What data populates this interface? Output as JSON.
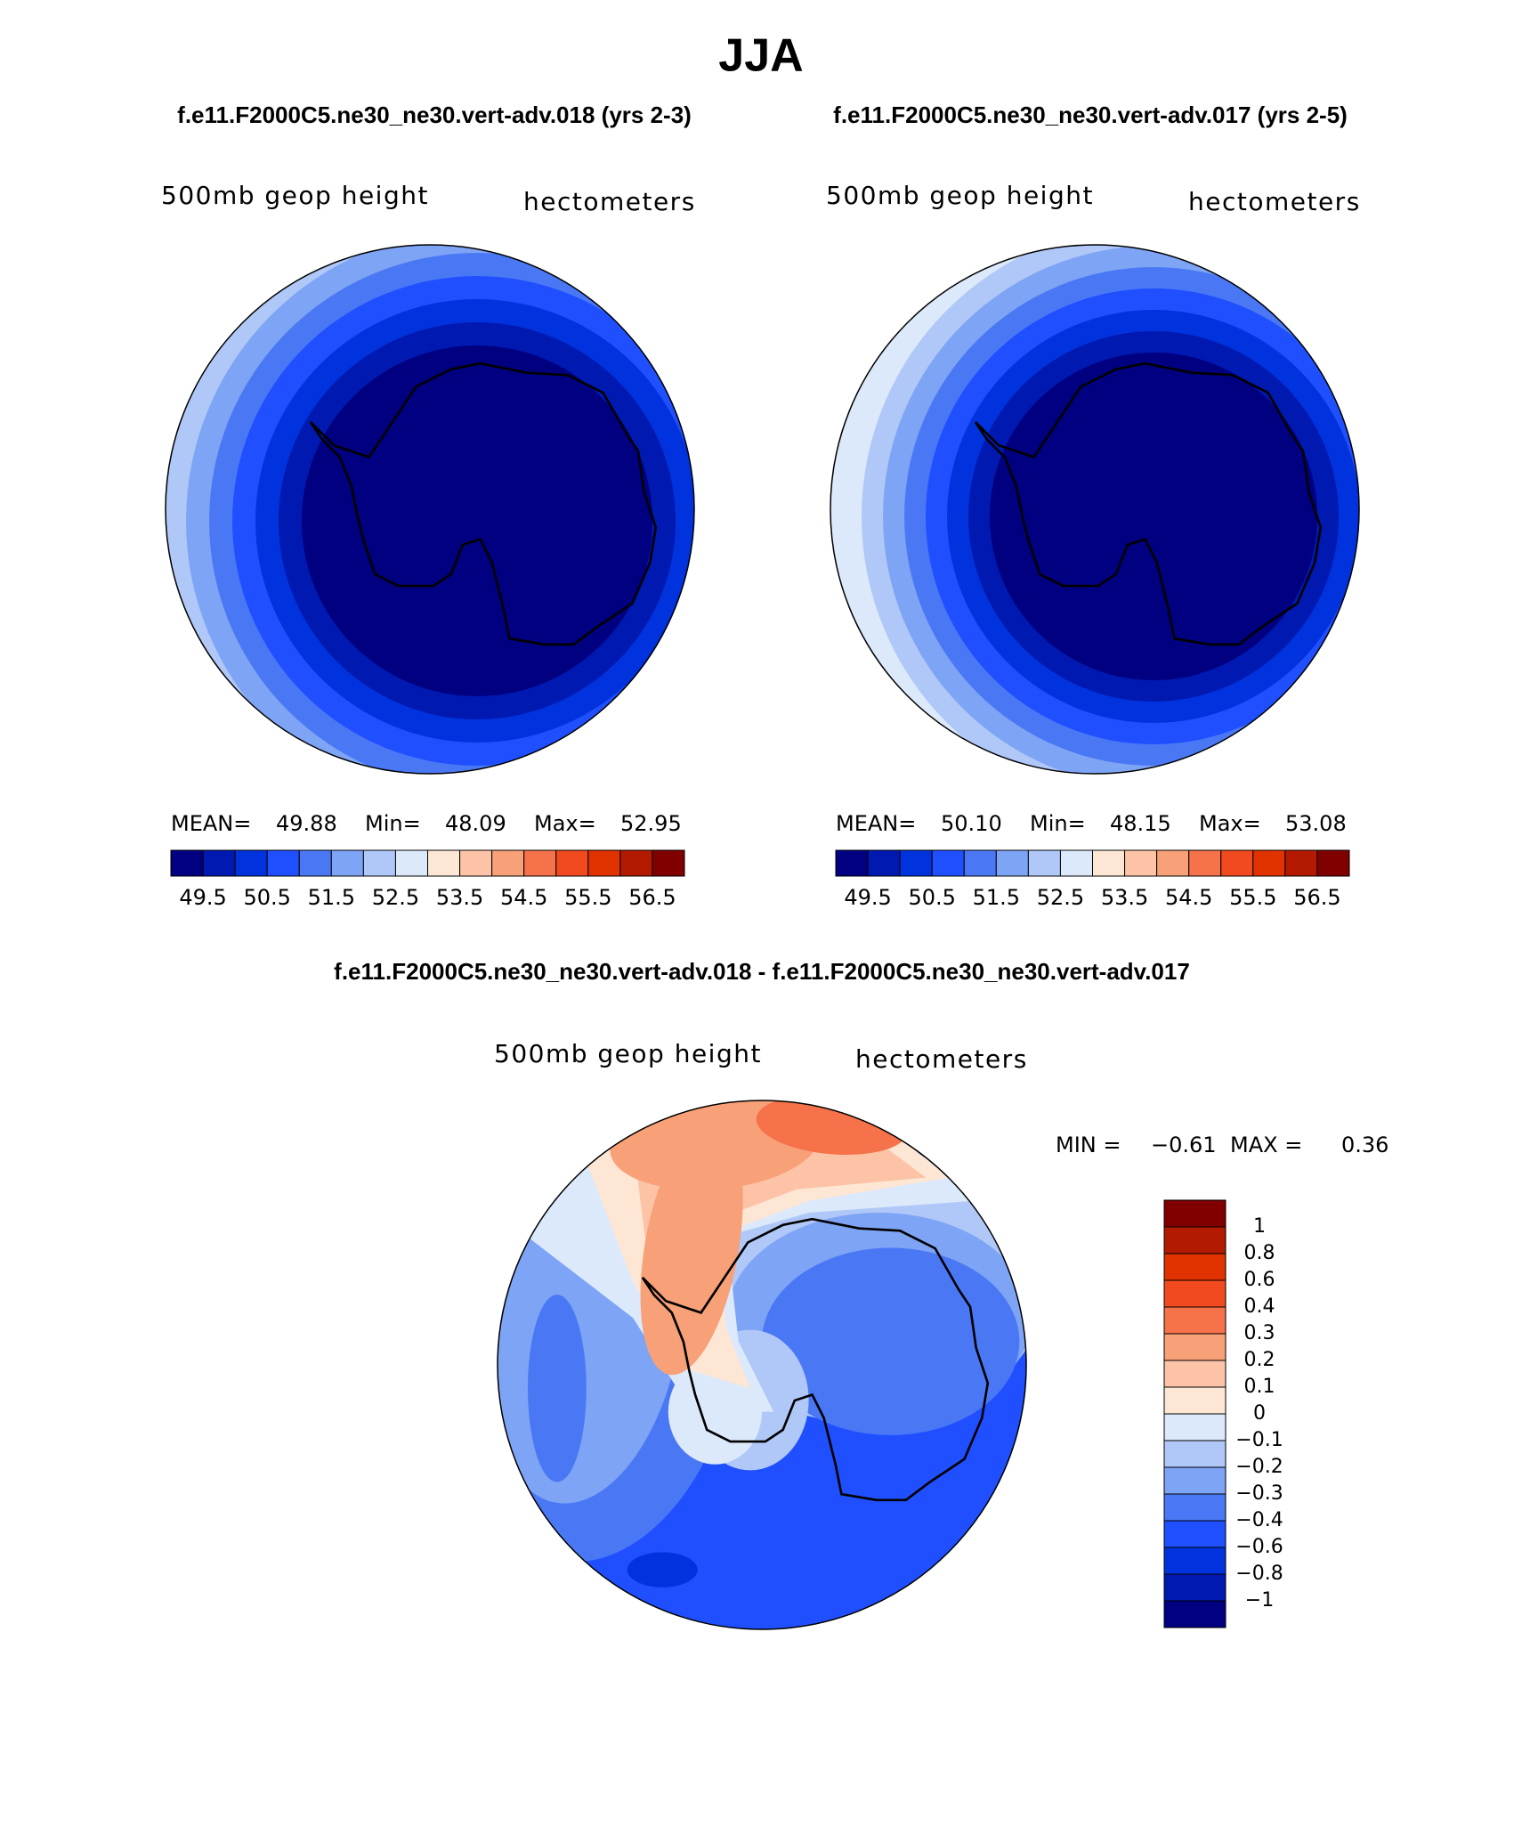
{
  "title": "JJA",
  "panels": [
    {
      "subtitle": "f.e11.F2000C5.ne30_ne30.vert-adv.018 (yrs 2-3)",
      "field_label": "500mb geop height",
      "units_label": "hectometers",
      "stats": [
        "MEAN=",
        "49.88",
        "Min=",
        "48.09",
        "Max=",
        "52.95"
      ],
      "colorbar": {
        "colors": [
          "#000080",
          "#0019b0",
          "#0033dd",
          "#1f4fff",
          "#4a78f5",
          "#7ea4f5",
          "#b0c8f8",
          "#dce9fb",
          "#fde6d4",
          "#fcc3a6",
          "#f8a078",
          "#f5724a",
          "#f24a1f",
          "#e03300",
          "#b31a00",
          "#800000"
        ],
        "labels": [
          "49.5",
          "50.5",
          "51.5",
          "52.5",
          "53.5",
          "54.5",
          "55.5",
          "56.5"
        ]
      }
    },
    {
      "subtitle": "f.e11.F2000C5.ne30_ne30.vert-adv.017 (yrs 2-5)",
      "field_label": "500mb geop height",
      "units_label": "hectometers",
      "stats": [
        "MEAN=",
        "50.10",
        "Min=",
        "48.15",
        "Max=",
        "53.08"
      ],
      "colorbar": {
        "colors": [
          "#000080",
          "#0019b0",
          "#0033dd",
          "#1f4fff",
          "#4a78f5",
          "#7ea4f5",
          "#b0c8f8",
          "#dce9fb",
          "#fde6d4",
          "#fcc3a6",
          "#f8a078",
          "#f5724a",
          "#f24a1f",
          "#e03300",
          "#b31a00",
          "#800000"
        ],
        "labels": [
          "49.5",
          "50.5",
          "51.5",
          "52.5",
          "53.5",
          "54.5",
          "55.5",
          "56.5"
        ]
      }
    }
  ],
  "difference": {
    "title": "f.e11.F2000C5.ne30_ne30.vert-adv.018 - f.e11.F2000C5.ne30_ne30.vert-adv.017",
    "field_label": "500mb geop height",
    "units_label": "hectometers",
    "stats": [
      "MIN =",
      "−0.61",
      "MAX =",
      "0.36"
    ],
    "colorbar": {
      "colors": [
        "#800000",
        "#b31a00",
        "#e03300",
        "#f24a1f",
        "#f5724a",
        "#f8a078",
        "#fcc3a6",
        "#fde6d4",
        "#dce9fb",
        "#b0c8f8",
        "#7ea4f5",
        "#4a78f5",
        "#1f4fff",
        "#0033dd",
        "#0019b0",
        "#000080"
      ],
      "labels": [
        "1",
        "0.8",
        "0.6",
        "0.4",
        "0.3",
        "0.2",
        "0.1",
        "0",
        "−0.1",
        "−0.2",
        "−0.3",
        "−0.4",
        "−0.6",
        "−0.8",
        "−1"
      ]
    }
  }
}
